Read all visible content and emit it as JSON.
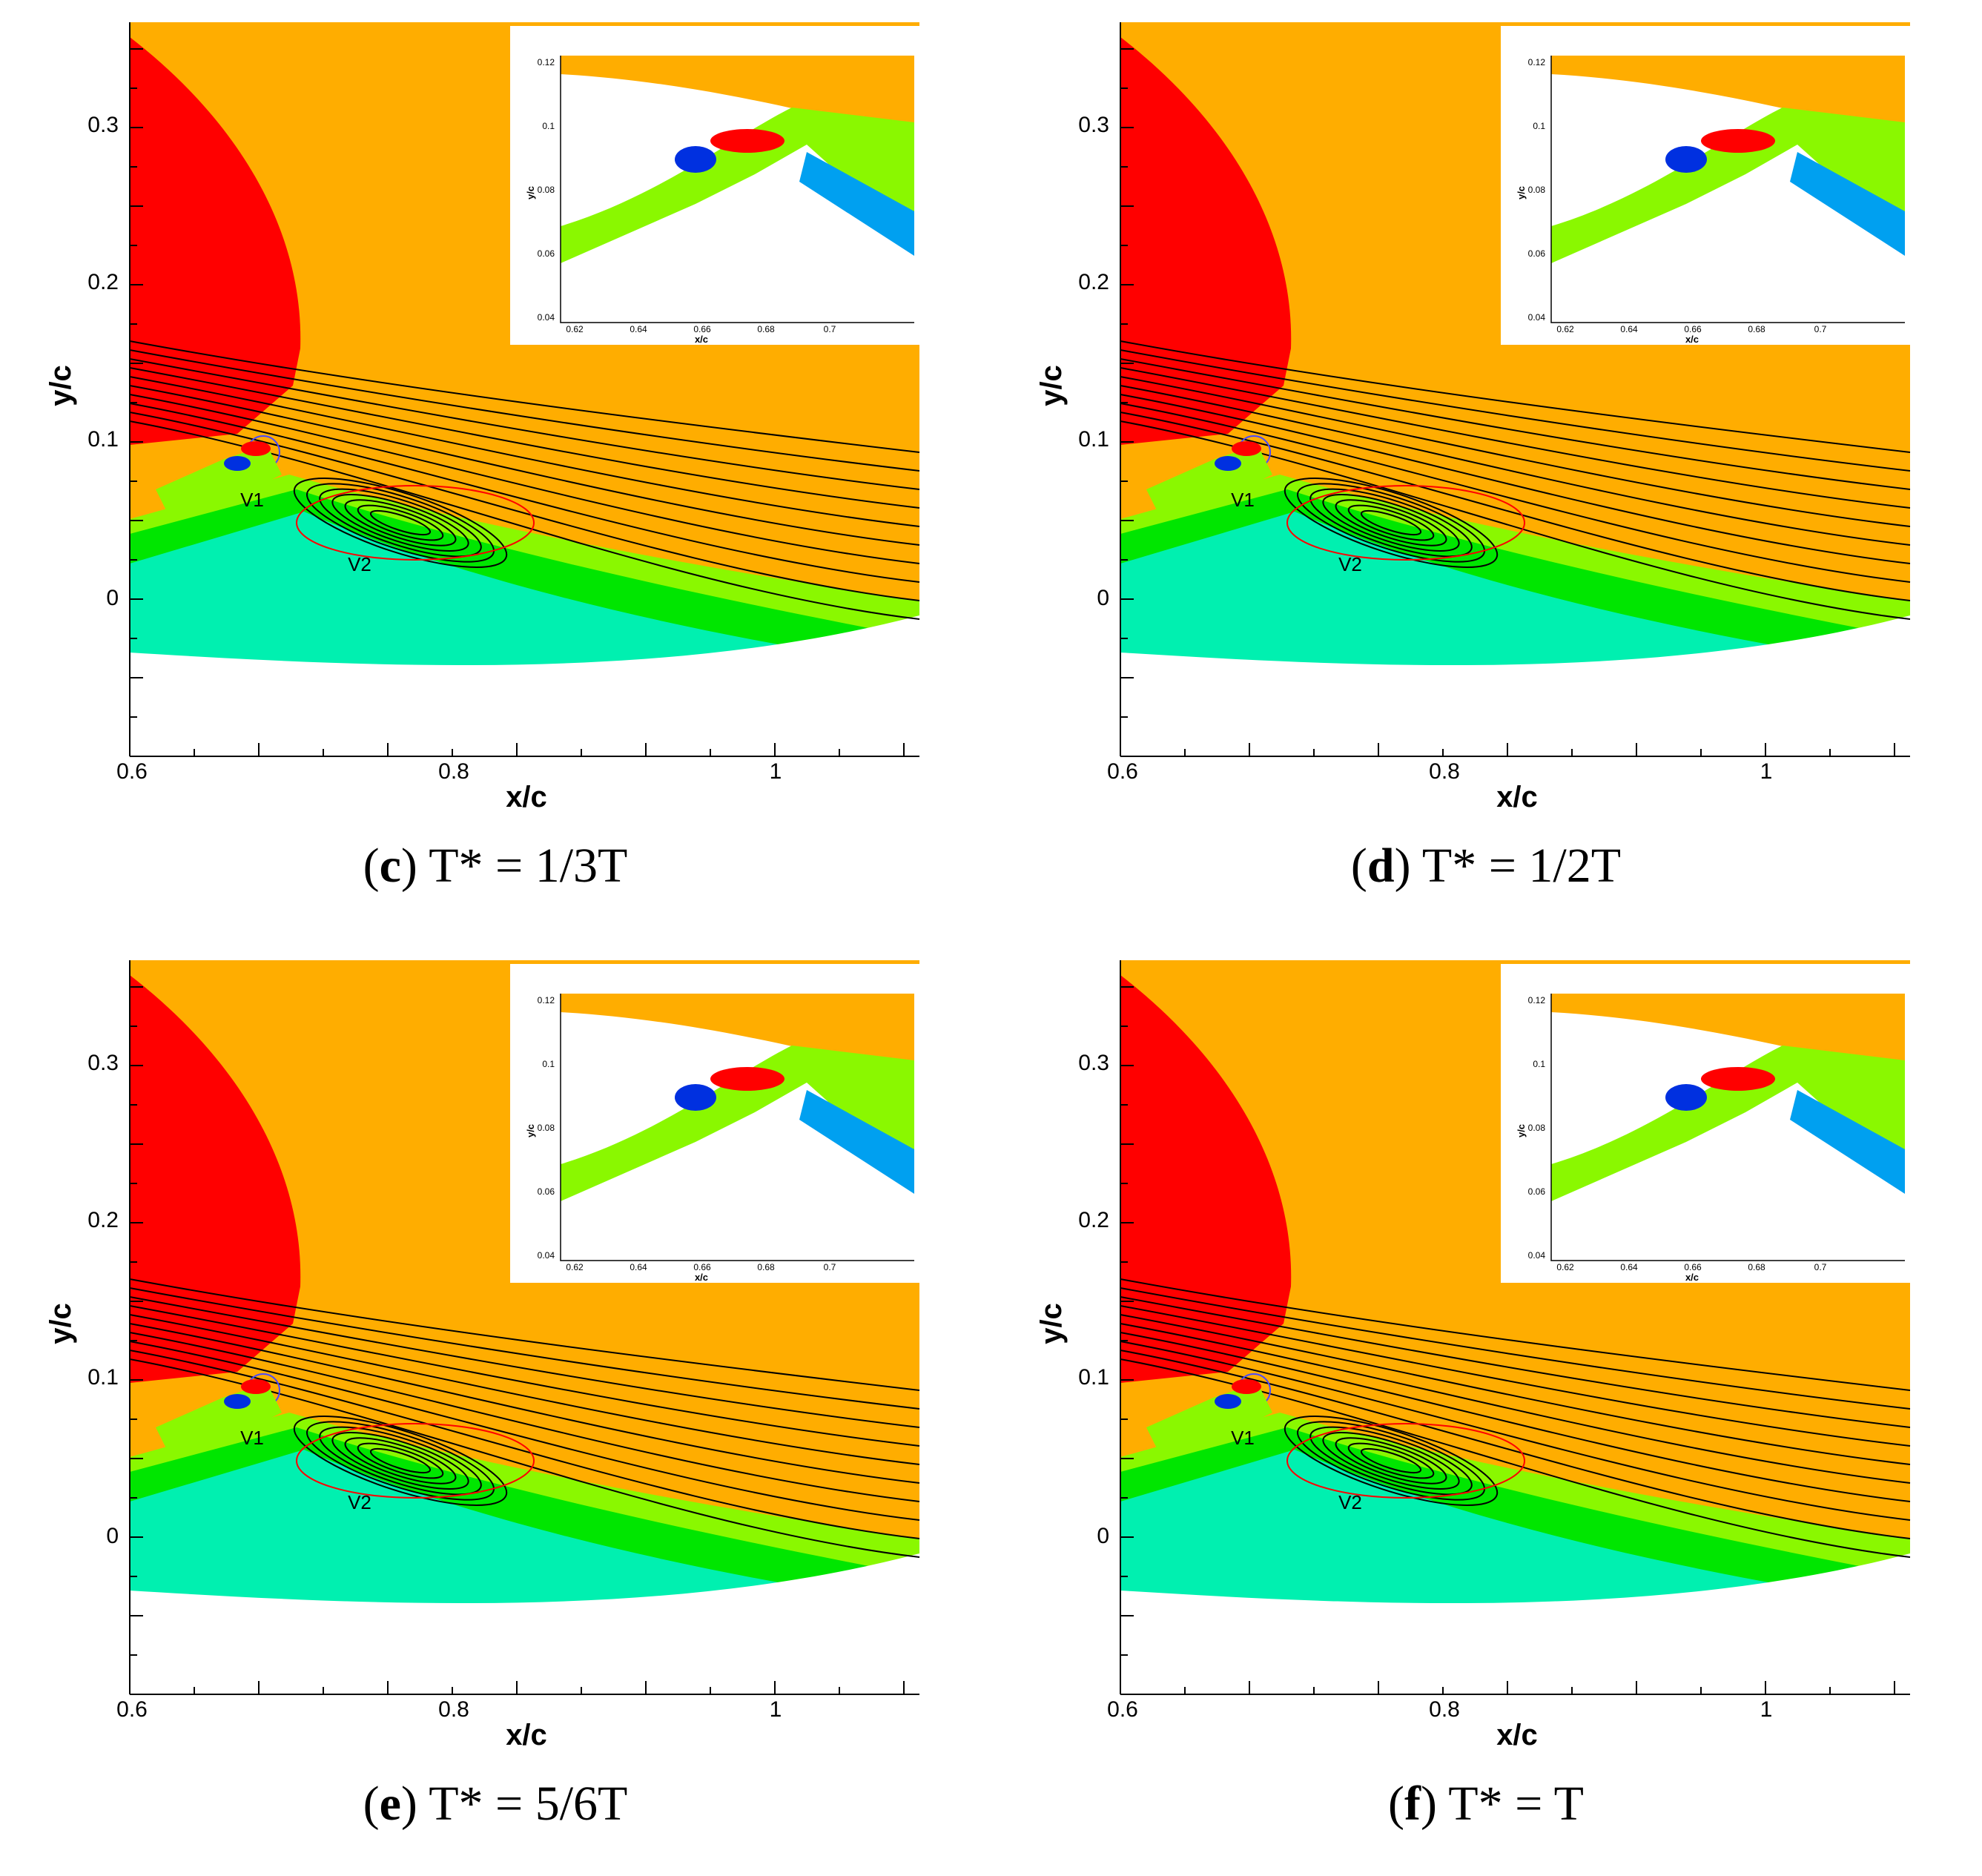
{
  "figure": {
    "panels": [
      {
        "letter": "c",
        "caption": "T* = 1/3T",
        "xlabel": "x/c",
        "ylabel": "y/c",
        "x_ticks": [
          "0.6",
          "0.8",
          "1"
        ],
        "y_ticks": [
          "0.3",
          "0.2",
          "0.1",
          "0"
        ],
        "labels": [
          "V1",
          "V2"
        ],
        "inset": {
          "xlabel": "x/c",
          "ylabel": "y/c",
          "x_ticks": [
            "0.62",
            "0.64",
            "0.66",
            "0.68",
            "0.7"
          ],
          "y_ticks": [
            "0.12",
            "0.1",
            "0.08",
            "0.06",
            "0.04"
          ]
        }
      },
      {
        "letter": "d",
        "caption": "T* = 1/2T",
        "xlabel": "x/c",
        "ylabel": "y/c",
        "x_ticks": [
          "0.6",
          "0.8",
          "1"
        ],
        "y_ticks": [
          "0.3",
          "0.2",
          "0.1",
          "0"
        ],
        "labels": [
          "V1",
          "V2"
        ],
        "inset": {
          "xlabel": "x/c",
          "ylabel": "y/c",
          "x_ticks": [
            "0.62",
            "0.64",
            "0.66",
            "0.68",
            "0.7"
          ],
          "y_ticks": [
            "0.12",
            "0.1",
            "0.08",
            "0.06",
            "0.04"
          ]
        }
      },
      {
        "letter": "e",
        "caption": "T* = 5/6T",
        "xlabel": "x/c",
        "ylabel": "y/c",
        "x_ticks": [
          "0.6",
          "0.8",
          "1"
        ],
        "y_ticks": [
          "0.3",
          "0.2",
          "0.1",
          "0"
        ],
        "labels": [
          "V1",
          "V2"
        ],
        "inset": {
          "xlabel": "x/c",
          "ylabel": "y/c",
          "x_ticks": [
            "0.62",
            "0.64",
            "0.66",
            "0.68",
            "0.7"
          ],
          "y_ticks": [
            "0.12",
            "0.1",
            "0.08",
            "0.06",
            "0.04"
          ]
        }
      },
      {
        "letter": "f",
        "caption": "T* = T",
        "xlabel": "x/c",
        "ylabel": "y/c",
        "x_ticks": [
          "0.6",
          "0.8",
          "1"
        ],
        "y_ticks": [
          "0.3",
          "0.2",
          "0.1",
          "0"
        ],
        "labels": [
          "V1",
          "V2"
        ],
        "inset": {
          "xlabel": "x/c",
          "ylabel": "y/c",
          "x_ticks": [
            "0.62",
            "0.64",
            "0.66",
            "0.68",
            "0.7"
          ],
          "y_ticks": [
            "0.12",
            "0.1",
            "0.08",
            "0.06",
            "0.04"
          ]
        }
      }
    ],
    "colors": {
      "orange": "#ffad00",
      "red": "#ff0000",
      "green": "#00e600",
      "lightgreen": "#8af800",
      "cyan": "#00f0b0",
      "blue": "#00a0f0",
      "darkblue": "#0030e0",
      "black": "#000000"
    }
  }
}
